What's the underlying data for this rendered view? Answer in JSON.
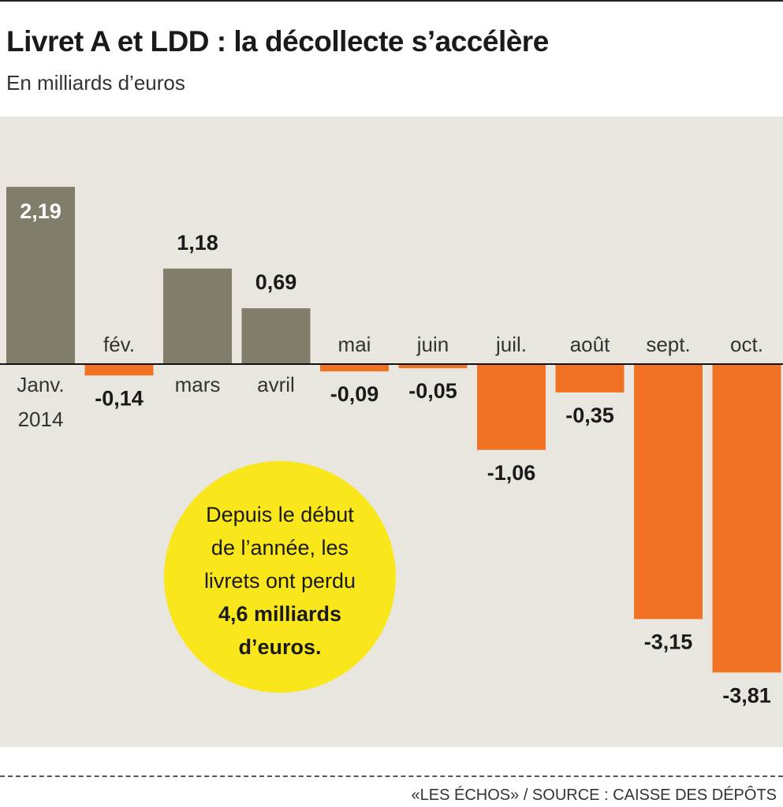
{
  "chart_data": {
    "type": "bar",
    "title": "Livret A et LDD : la décollecte s’accélère",
    "subtitle": "En milliards d’euros",
    "categories": [
      "Janv.\n2014",
      "fév.",
      "mars",
      "avril",
      "mai",
      "juin",
      "juil.",
      "août",
      "sept.",
      "oct."
    ],
    "values": [
      2.19,
      -0.14,
      1.18,
      0.69,
      -0.09,
      -0.05,
      -1.06,
      -0.35,
      -3.15,
      -3.81
    ],
    "value_labels": [
      "2,19",
      "-0,14",
      "1,18",
      "0,69",
      "-0,09",
      "-0,05",
      "-1,06",
      "-0,35",
      "-3,15",
      "-3,81"
    ],
    "ylim": [
      -4.2,
      3.0
    ],
    "grid": false,
    "colors": {
      "positive": "#817d6b",
      "negative": "#f27224",
      "background": "#e8e6de",
      "annotation": "#f9e71c"
    },
    "annotation": {
      "lines": [
        "Depuis le début",
        "de l’année, les",
        "livrets ont perdu"
      ],
      "bold_lines": [
        "4,6 milliards",
        "d’euros."
      ]
    }
  },
  "footer": {
    "credit": "«LES ÉCHOS»  / SOURCE : CAISSE DES DÉPÔTS"
  }
}
